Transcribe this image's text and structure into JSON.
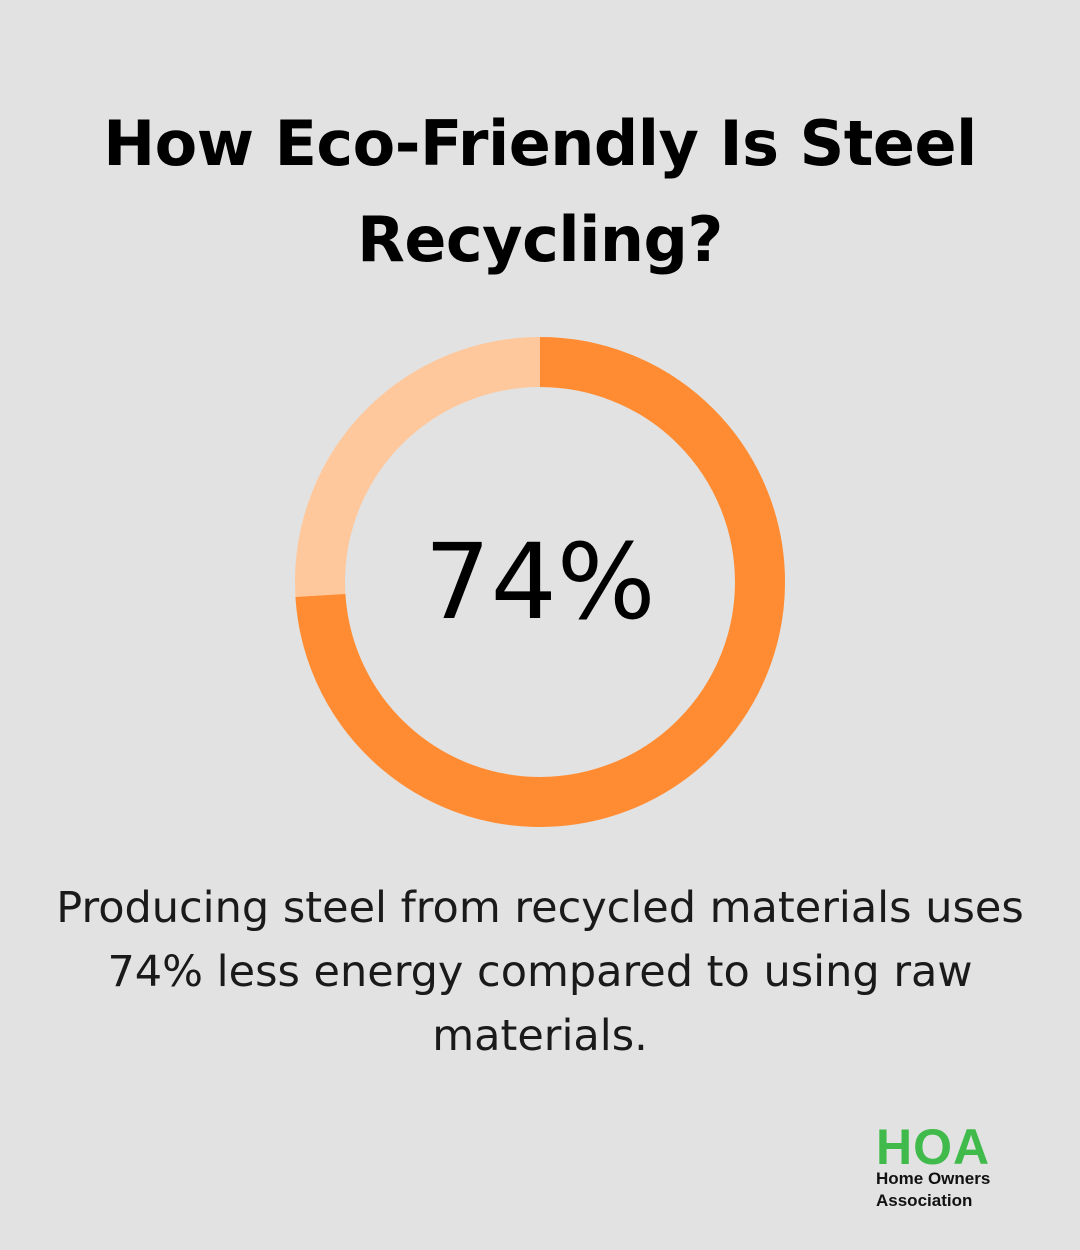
{
  "title": "How Eco-Friendly Is Steel Recycling?",
  "chart_data": {
    "type": "pie",
    "style": "donut",
    "value_percent": 74,
    "remainder_percent": 26,
    "center_label": "74%",
    "colors": {
      "filled": "#ff8c33",
      "remainder": "#ffc89c"
    }
  },
  "description": "Producing steel from recycled materials uses 74% less energy compared to using raw materials.",
  "logo": {
    "mark": "HOA",
    "line1": "Home Owners",
    "line2": "Association"
  },
  "colors": {
    "background": "#e1e2e1",
    "brand_green": "#3fba4b"
  }
}
